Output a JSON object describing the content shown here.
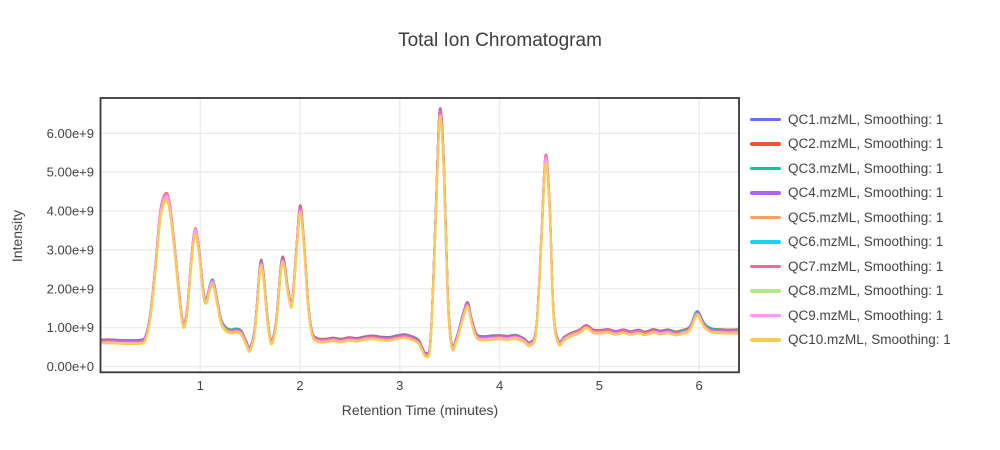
{
  "page": {
    "background": "#ffffff"
  },
  "styles": {
    "text_color": "#444444",
    "title_color": "#3d3d3d",
    "grid_color": "#ebebeb",
    "axis_border_color": "#383838",
    "plot_background": "#ffffff"
  },
  "chart_data": {
    "type": "line",
    "title": "Total Ion Chromatogram",
    "xlabel": "Retention Time (minutes)",
    "ylabel": "Intensity",
    "grid": true,
    "legend_position": "right",
    "x_range": [
      0,
      6.4
    ],
    "y_range_e9": [
      -0.15,
      6.91
    ],
    "x_ticks": {
      "values": [
        1,
        2,
        3,
        4,
        5,
        6
      ],
      "labels": [
        "1",
        "2",
        "3",
        "4",
        "5",
        "6"
      ]
    },
    "y_ticks": {
      "values_e9": [
        0,
        1,
        2,
        3,
        4,
        5,
        6
      ],
      "labels": [
        "0.00e+0",
        "1.00e+9",
        "2.00e+9",
        "3.00e+9",
        "4.00e+9",
        "5.00e+9",
        "6.00e+9"
      ]
    },
    "x": [
      0.0,
      0.08,
      0.16,
      0.24,
      0.32,
      0.4,
      0.45,
      0.5,
      0.55,
      0.6,
      0.65,
      0.69,
      0.74,
      0.79,
      0.83,
      0.87,
      0.91,
      0.95,
      0.99,
      1.03,
      1.06,
      1.1,
      1.13,
      1.17,
      1.21,
      1.26,
      1.31,
      1.36,
      1.41,
      1.46,
      1.5,
      1.55,
      1.6,
      1.63,
      1.67,
      1.71,
      1.76,
      1.81,
      1.84,
      1.88,
      1.92,
      1.96,
      2.0,
      2.04,
      2.08,
      2.12,
      2.17,
      2.25,
      2.33,
      2.41,
      2.49,
      2.57,
      2.65,
      2.73,
      2.81,
      2.89,
      2.97,
      3.05,
      3.12,
      3.19,
      3.26,
      3.31,
      3.36,
      3.4,
      3.44,
      3.48,
      3.52,
      3.57,
      3.63,
      3.68,
      3.72,
      3.77,
      3.84,
      3.92,
      4.0,
      4.08,
      4.16,
      4.24,
      4.31,
      4.37,
      4.42,
      4.46,
      4.5,
      4.54,
      4.59,
      4.65,
      4.72,
      4.8,
      4.87,
      4.94,
      5.01,
      5.09,
      5.16,
      5.24,
      5.31,
      5.39,
      5.46,
      5.54,
      5.61,
      5.69,
      5.76,
      5.84,
      5.91,
      5.98,
      6.05,
      6.12,
      6.2,
      6.3,
      6.4
    ],
    "base_intensity_e9": [
      0.63,
      0.64,
      0.63,
      0.62,
      0.62,
      0.63,
      0.72,
      1.3,
      2.5,
      3.9,
      4.33,
      4.15,
      3.1,
      1.8,
      1.05,
      1.45,
      2.7,
      3.48,
      2.9,
      1.9,
      1.68,
      2.05,
      2.15,
      1.65,
      1.15,
      0.95,
      0.9,
      0.92,
      0.87,
      0.6,
      0.44,
      1.0,
      2.53,
      2.4,
      1.3,
      0.62,
      1.1,
      2.55,
      2.62,
      1.9,
      1.6,
      2.8,
      4.0,
      3.1,
      1.6,
      0.85,
      0.68,
      0.66,
      0.69,
      0.66,
      0.7,
      0.68,
      0.72,
      0.74,
      0.71,
      0.7,
      0.74,
      0.77,
      0.72,
      0.62,
      0.3,
      0.7,
      3.8,
      6.45,
      5.2,
      1.8,
      0.52,
      0.7,
      1.25,
      1.58,
      1.15,
      0.78,
      0.72,
      0.74,
      0.75,
      0.73,
      0.76,
      0.68,
      0.58,
      1.0,
      3.3,
      5.3,
      4.2,
      1.4,
      0.62,
      0.72,
      0.82,
      0.9,
      1.02,
      0.9,
      0.89,
      0.91,
      0.86,
      0.9,
      0.85,
      0.89,
      0.84,
      0.9,
      0.86,
      0.89,
      0.84,
      0.88,
      0.97,
      1.35,
      1.05,
      0.92,
      0.9,
      0.89,
      0.9
    ],
    "series": [
      {
        "name": "QC1.mzML",
        "label": "QC1.mzML, Smoothing: 1",
        "color": "#636EFA",
        "scale": 1.0,
        "offset_e9": 0.05,
        "wobble": 0.01,
        "freq": 2.3,
        "phase": 0.5
      },
      {
        "name": "QC2.mzML",
        "label": "QC2.mzML, Smoothing: 1",
        "color": "#EF553B",
        "scale": 1.017,
        "offset_e9": 0.036,
        "wobble": 0.01,
        "freq": 3.1,
        "phase": 2.1
      },
      {
        "name": "QC3.mzML",
        "label": "QC3.mzML, Smoothing: 1",
        "color": "#00CC96",
        "scale": 1.01,
        "offset_e9": 0.027,
        "wobble": 0.012,
        "freq": 2.7,
        "phase": 4.0
      },
      {
        "name": "QC4.mzML",
        "label": "QC4.mzML, Smoothing: 1",
        "color": "#AB63FA",
        "scale": 1.011,
        "offset_e9": 0.018,
        "wobble": 0.01,
        "freq": 3.6,
        "phase": 1.2
      },
      {
        "name": "QC5.mzML",
        "label": "QC5.mzML, Smoothing: 1",
        "color": "#FFA15A",
        "scale": 0.997,
        "offset_e9": 0.01,
        "wobble": 0.009,
        "freq": 2.1,
        "phase": 3.3
      },
      {
        "name": "QC6.mzML",
        "label": "QC6.mzML, Smoothing: 1",
        "color": "#19D3F3",
        "scale": 1.004,
        "offset_e9": 0.002,
        "wobble": 0.01,
        "freq": 3.3,
        "phase": 5.1
      },
      {
        "name": "QC7.mzML",
        "label": "QC7.mzML, Smoothing: 1",
        "color": "#FF6692",
        "scale": 1.02,
        "offset_e9": -0.006,
        "wobble": 0.01,
        "freq": 2.9,
        "phase": 0.2
      },
      {
        "name": "QC8.mzML",
        "label": "QC8.mzML, Smoothing: 1",
        "color": "#B6E880",
        "scale": 0.992,
        "offset_e9": -0.016,
        "wobble": 0.012,
        "freq": 2.5,
        "phase": 2.8
      },
      {
        "name": "QC9.mzML",
        "label": "QC9.mzML, Smoothing: 1",
        "color": "#FF97FF",
        "scale": 1.01,
        "offset_e9": -0.027,
        "wobble": 0.01,
        "freq": 3.8,
        "phase": 4.6
      },
      {
        "name": "QC10.mzML",
        "label": "QC10.mzML, Smoothing: 1",
        "color": "#FECB52",
        "scale": 0.996,
        "offset_e9": -0.04,
        "wobble": 0.009,
        "freq": 2.2,
        "phase": 1.9
      }
    ]
  }
}
